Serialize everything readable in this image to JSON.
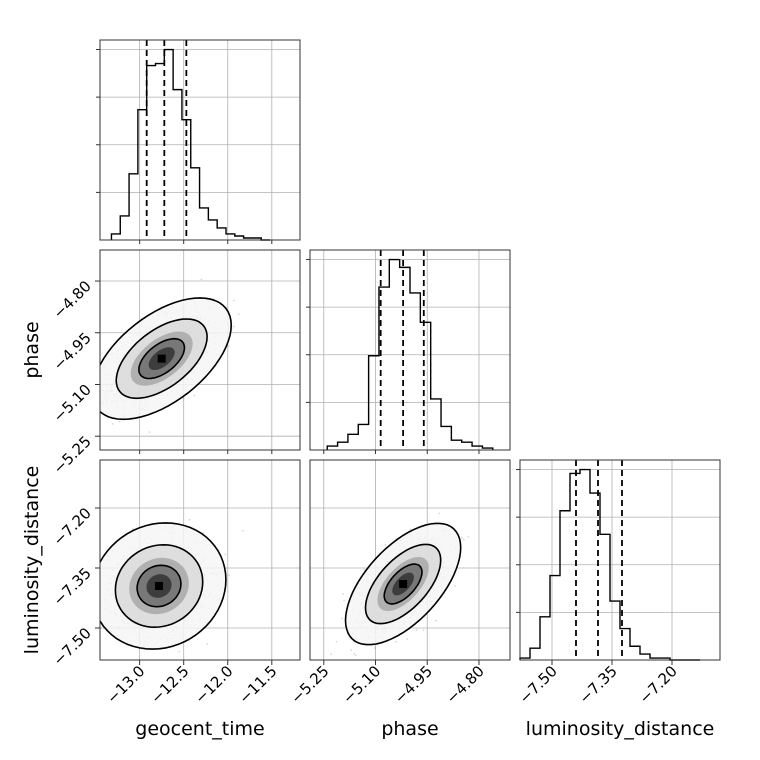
{
  "chart_data": {
    "type": "corner",
    "parameters": [
      "geocent_time",
      "phase",
      "luminosity_distance"
    ],
    "axes": {
      "geocent_time": {
        "range": [
          -13.45,
          -11.18
        ],
        "ticks": [
          -13.0,
          -12.5,
          -12.0,
          -11.5
        ],
        "tick_labels": [
          "−13.0",
          "−12.5",
          "−12.0",
          "−11.5"
        ]
      },
      "phase": {
        "range": [
          -5.29,
          -4.71
        ],
        "ticks": [
          -5.25,
          -5.1,
          -4.95,
          -4.8
        ],
        "tick_labels": [
          "−5.25",
          "−5.10",
          "−4.95",
          "−4.80"
        ]
      },
      "luminosity_distance": {
        "range": [
          -7.58,
          -7.08
        ],
        "ticks": [
          -7.5,
          -7.35,
          -7.2
        ],
        "tick_labels": [
          "−7.50",
          "−7.35",
          "−7.20"
        ]
      }
    },
    "histograms": [
      {
        "parameter": "geocent_time",
        "bin_edges": [
          -13.32,
          -13.22,
          -13.12,
          -13.02,
          -12.92,
          -12.82,
          -12.72,
          -12.62,
          -12.52,
          -12.42,
          -12.32,
          -12.22,
          -12.12,
          -12.02,
          -11.92,
          -11.82,
          -11.72,
          -11.62,
          -11.52
        ],
        "counts": [
          3,
          12,
          33,
          65,
          87,
          88,
          95,
          75,
          60,
          36,
          16,
          10,
          6,
          3,
          2,
          1,
          1,
          0
        ],
        "quantiles": [
          -12.92,
          -12.72,
          -12.47
        ]
      },
      {
        "parameter": "phase",
        "bin_edges": [
          -5.24,
          -5.21,
          -5.18,
          -5.15,
          -5.12,
          -5.09,
          -5.06,
          -5.03,
          -5.0,
          -4.97,
          -4.94,
          -4.91,
          -4.88,
          -4.85,
          -4.82,
          -4.79,
          -4.76
        ],
        "counts": [
          2,
          4,
          8,
          13,
          48,
          83,
          97,
          93,
          80,
          65,
          26,
          12,
          5,
          4,
          2,
          1
        ],
        "quantiles": [
          -5.085,
          -5.02,
          -4.96
        ]
      },
      {
        "parameter": "luminosity_distance",
        "bin_edges": [
          -7.58,
          -7.555,
          -7.53,
          -7.505,
          -7.48,
          -7.455,
          -7.43,
          -7.405,
          -7.38,
          -7.355,
          -7.33,
          -7.305,
          -7.28,
          -7.255,
          -7.23,
          -7.205,
          -7.18,
          -7.155,
          -7.13
        ],
        "counts": [
          1,
          6,
          22,
          43,
          76,
          95,
          97,
          85,
          64,
          30,
          16,
          7,
          3,
          1,
          1,
          0,
          0,
          0
        ],
        "quantiles": [
          -7.44,
          -7.385,
          -7.325
        ]
      }
    ],
    "joint": [
      {
        "x": "geocent_time",
        "y": "phase",
        "mean": [
          -12.75,
          -5.025
        ],
        "sd": [
          0.26,
          0.058
        ],
        "corr": 0.55,
        "contour_levels": [
          0.39,
          0.86,
          0.99
        ]
      },
      {
        "x": "geocent_time",
        "y": "luminosity_distance",
        "mean": [
          -12.78,
          -7.395
        ],
        "sd": [
          0.25,
          0.052
        ],
        "corr": 0.1,
        "contour_levels": [
          0.39,
          0.86,
          0.99
        ]
      },
      {
        "x": "phase",
        "y": "luminosity_distance",
        "mean": [
          -5.02,
          -7.39
        ],
        "sd": [
          0.055,
          0.05
        ],
        "corr": 0.6,
        "contour_levels": [
          0.39,
          0.86,
          0.99
        ]
      }
    ],
    "grid": true,
    "colors": {
      "line": "#000000",
      "scatter": "#8c8c8c",
      "grid": "#b0b0b0"
    }
  }
}
